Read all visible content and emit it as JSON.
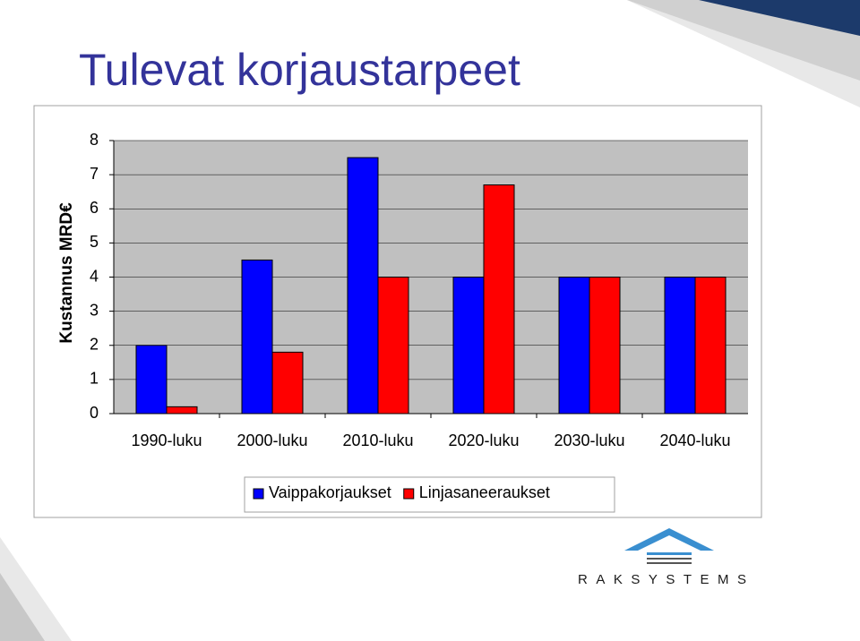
{
  "chart_data": {
    "type": "bar",
    "title": "Tulevat korjaustarpeet",
    "y_label": "Kustannus MRD€",
    "categories": [
      "1990-luku",
      "2000-luku",
      "2010-luku",
      "2020-luku",
      "2030-luku",
      "2040-luku"
    ],
    "series": [
      {
        "name": "Vaippakorjaukset",
        "color": "#0000ff",
        "values": [
          2,
          4.5,
          7.5,
          4,
          4,
          4
        ]
      },
      {
        "name": "Linjasaneeraukset",
        "color": "#ff0000",
        "values": [
          0.2,
          1.8,
          4,
          6.7,
          4,
          4
        ]
      }
    ],
    "ylim": [
      0,
      8
    ],
    "yticks": [
      0,
      1,
      2,
      3,
      4,
      5,
      6,
      7,
      8
    ],
    "grid": true,
    "legend": "bottom"
  },
  "logo_text": "RAKSYSTEMS"
}
